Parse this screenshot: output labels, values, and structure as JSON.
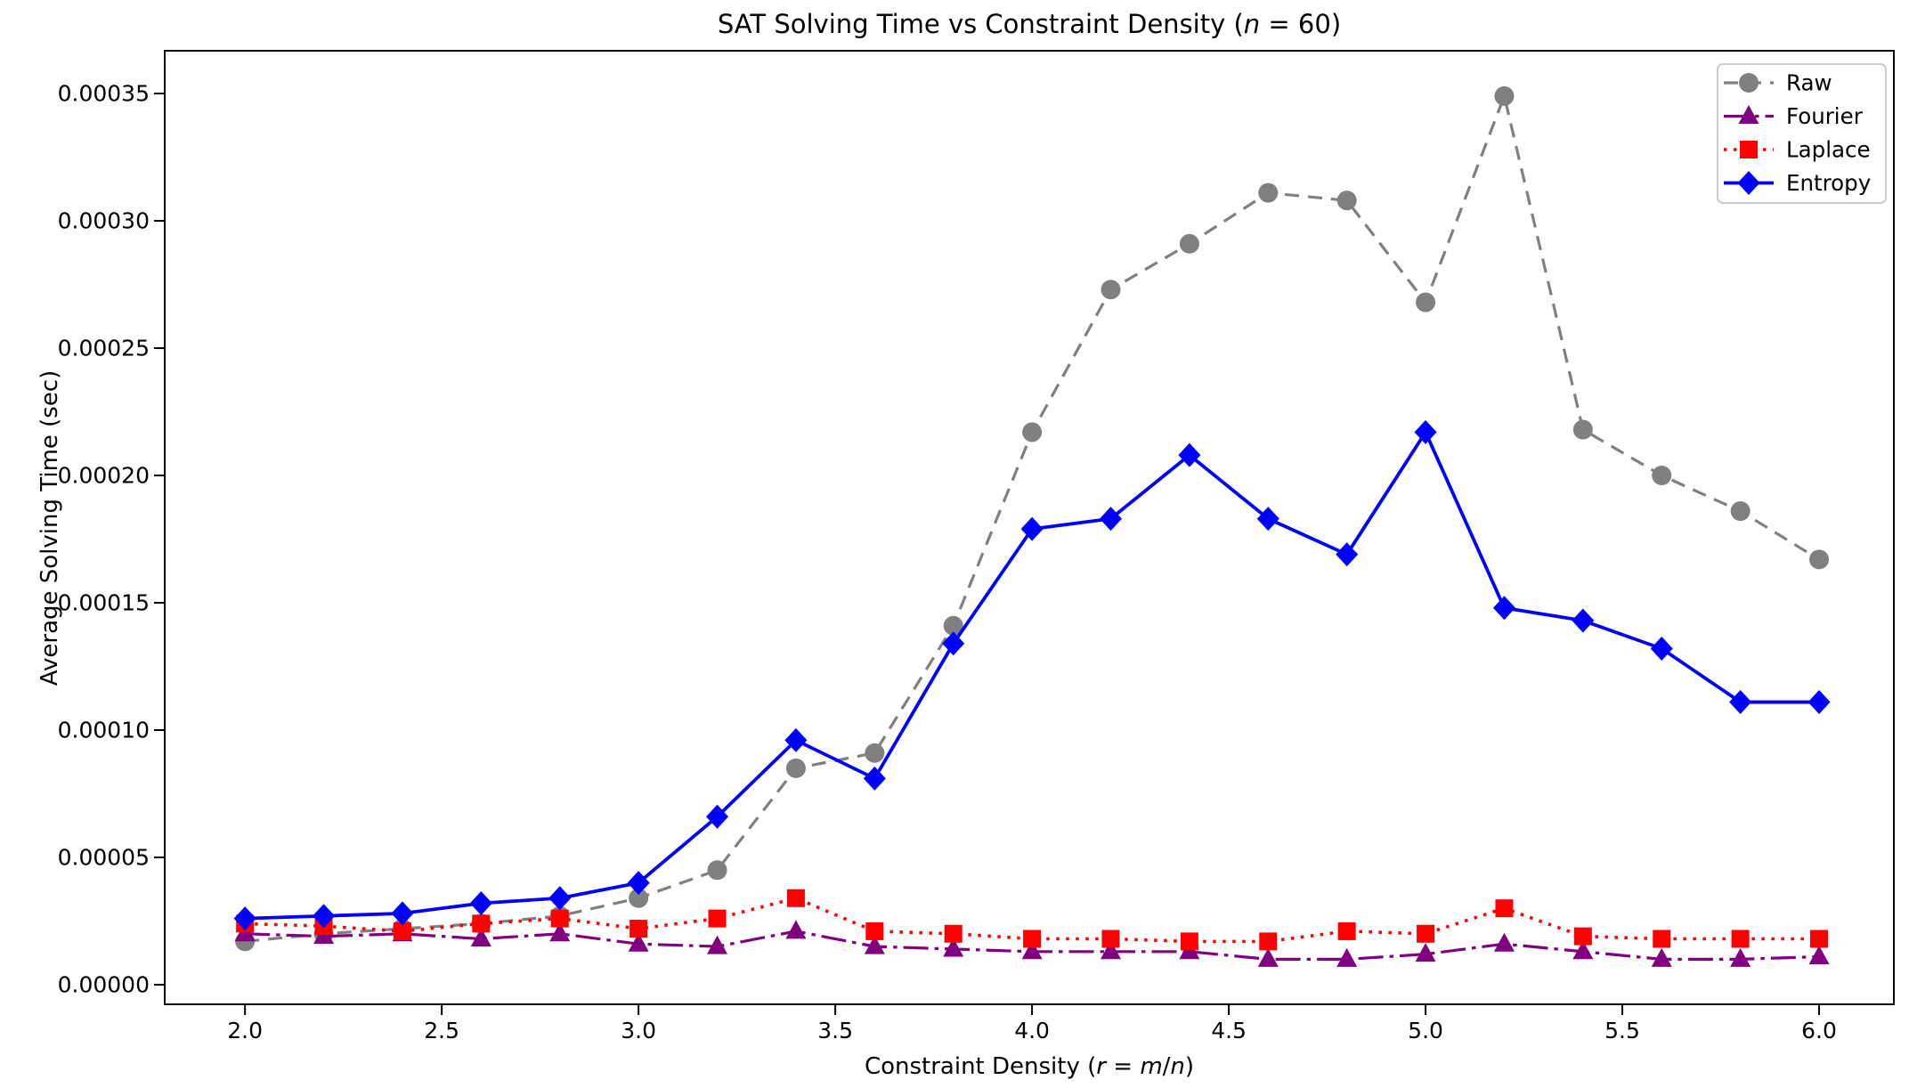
{
  "figure": {
    "background": "#ffffff",
    "title_parts": [
      {
        "text": "SAT Solving Time vs Constraint Density (",
        "italic": false
      },
      {
        "text": "n",
        "italic": true
      },
      {
        "text": " = 60)",
        "italic": false
      }
    ],
    "xlabel_parts": [
      {
        "text": "Constraint Density (",
        "italic": false
      },
      {
        "text": "r",
        "italic": true
      },
      {
        "text": " = ",
        "italic": false
      },
      {
        "text": "m",
        "italic": true
      },
      {
        "text": "/",
        "italic": false
      },
      {
        "text": "n",
        "italic": true
      },
      {
        "text": ")",
        "italic": false
      }
    ]
  },
  "chart_data": {
    "type": "line",
    "title": "SAT Solving Time vs Constraint Density (n = 60)",
    "xlabel": "Constraint Density (r = m/n)",
    "ylabel": "Average Solving Time (sec)",
    "grid": false,
    "legend_position": "upper right",
    "xlim": [
      1.796,
      6.19
    ],
    "ylim": [
      -7.7e-06,
      0.0003668
    ],
    "xticks": [
      2.0,
      2.5,
      3.0,
      3.5,
      4.0,
      4.5,
      5.0,
      5.5,
      6.0
    ],
    "xtick_labels": [
      "2.0",
      "2.5",
      "3.0",
      "3.5",
      "4.0",
      "4.5",
      "5.0",
      "5.5",
      "6.0"
    ],
    "yticks": [
      0.0,
      5e-05,
      0.0001,
      0.00015,
      0.0002,
      0.00025,
      0.0003,
      0.00035
    ],
    "ytick_labels": [
      "0.00000",
      "0.00005",
      "0.00010",
      "0.00015",
      "0.00020",
      "0.00025",
      "0.00030",
      "0.00035"
    ],
    "x": [
      2.0,
      2.2,
      2.4,
      2.6,
      2.8,
      3.0,
      3.2,
      3.4,
      3.6,
      3.8,
      4.0,
      4.2,
      4.4,
      4.6,
      4.8,
      5.0,
      5.2,
      5.4,
      5.6,
      5.8,
      6.0
    ],
    "series": [
      {
        "name": "Raw",
        "color": "#808080",
        "linestyle": "dashed",
        "marker": "circle",
        "values": [
          1.7e-05,
          2e-05,
          2.2e-05,
          2.4e-05,
          2.7e-05,
          3.4e-05,
          4.5e-05,
          8.5e-05,
          9.1e-05,
          0.000141,
          0.000217,
          0.000273,
          0.000291,
          0.000311,
          0.000308,
          0.000268,
          0.000349,
          0.000218,
          0.0002,
          0.000186,
          0.000167
        ]
      },
      {
        "name": "Fourier",
        "color": "#800080",
        "linestyle": "dashdot",
        "marker": "triangle",
        "values": [
          2e-05,
          1.9e-05,
          2e-05,
          1.8e-05,
          2e-05,
          1.6e-05,
          1.5e-05,
          2.1e-05,
          1.5e-05,
          1.4e-05,
          1.3e-05,
          1.3e-05,
          1.3e-05,
          1e-05,
          1e-05,
          1.2e-05,
          1.6e-05,
          1.3e-05,
          1e-05,
          1e-05,
          1.1e-05
        ]
      },
      {
        "name": "Laplace",
        "color": "#ff0000",
        "linestyle": "dotted",
        "marker": "square",
        "values": [
          2.4e-05,
          2.3e-05,
          2.1e-05,
          2.4e-05,
          2.6e-05,
          2.2e-05,
          2.6e-05,
          3.4e-05,
          2.1e-05,
          2e-05,
          1.8e-05,
          1.8e-05,
          1.7e-05,
          1.7e-05,
          2.1e-05,
          2e-05,
          3e-05,
          1.9e-05,
          1.8e-05,
          1.8e-05,
          1.8e-05
        ]
      },
      {
        "name": "Entropy",
        "color": "#0000ff",
        "linestyle": "solid",
        "marker": "diamond",
        "values": [
          2.6e-05,
          2.7e-05,
          2.8e-05,
          3.2e-05,
          3.4e-05,
          4e-05,
          6.6e-05,
          9.6e-05,
          8.1e-05,
          0.000134,
          0.000179,
          0.000183,
          0.000208,
          0.000183,
          0.000169,
          0.000217,
          0.000148,
          0.000143,
          0.000132,
          0.000111,
          0.000111
        ]
      }
    ],
    "legend_labels": [
      "Raw",
      "Fourier",
      "Laplace",
      "Entropy"
    ]
  }
}
